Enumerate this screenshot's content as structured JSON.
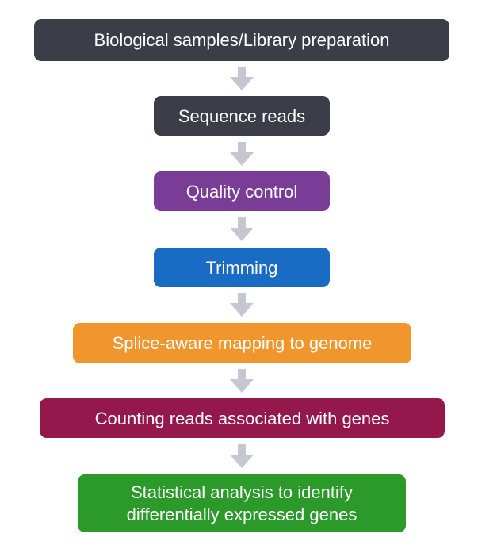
{
  "steps": [
    {
      "label": "Biological samples/Library preparation",
      "color": "#3b3e48"
    },
    {
      "label": "Sequence reads",
      "color": "#3b3e48"
    },
    {
      "label": "Quality control",
      "color": "#7a3d97"
    },
    {
      "label": "Trimming",
      "color": "#1a6bc4"
    },
    {
      "label": "Splice-aware mapping to genome",
      "color": "#f0962d"
    },
    {
      "label": "Counting reads associated with genes",
      "color": "#94184c"
    },
    {
      "line1": "Statistical analysis to identify",
      "line2": "differentially expressed genes",
      "color": "#2c9a2b"
    }
  ],
  "arrow": {
    "icon": "arrow-down-icon",
    "color": "#c4c6d2"
  }
}
